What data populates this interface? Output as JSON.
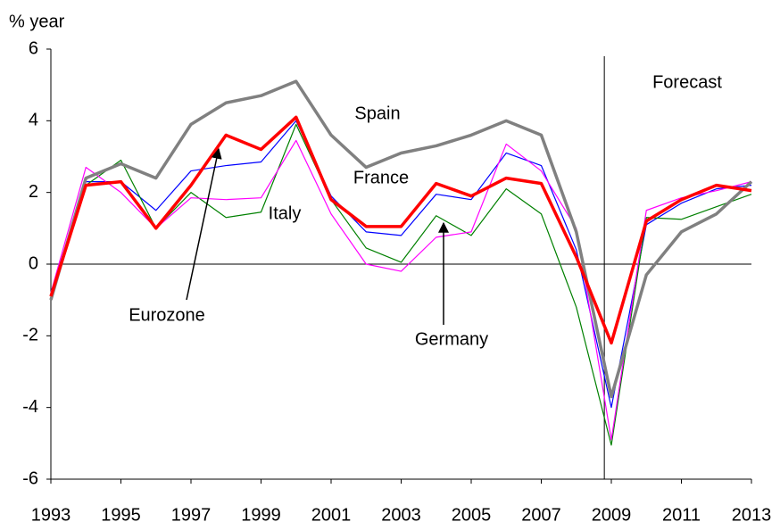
{
  "chart_data": {
    "type": "line",
    "y_label": "% year",
    "x": [
      1993,
      1994,
      1995,
      1996,
      1997,
      1998,
      1999,
      2000,
      2001,
      2002,
      2003,
      2004,
      2005,
      2006,
      2007,
      2008,
      2009,
      2010,
      2011,
      2012,
      2013
    ],
    "xlim": [
      1993,
      2013
    ],
    "xticks": [
      1993,
      1995,
      1997,
      1999,
      2001,
      2003,
      2005,
      2007,
      2009,
      2011,
      2013
    ],
    "ylim": [
      -6,
      6
    ],
    "yticks": [
      -6,
      -4,
      -2,
      0,
      2,
      4,
      6
    ],
    "forecast_start": 2008.8,
    "forecast_label": "Forecast",
    "series": [
      {
        "name": "France",
        "color": "#0000ff",
        "values": [
          -0.8,
          2.3,
          2.3,
          1.5,
          2.6,
          2.75,
          2.85,
          4.0,
          1.9,
          0.9,
          0.8,
          1.95,
          1.8,
          3.1,
          2.75,
          0.4,
          -4.0,
          1.1,
          1.7,
          2.1,
          2.2
        ]
      },
      {
        "name": "Italy",
        "color": "#008000",
        "values": [
          -0.9,
          2.2,
          2.9,
          1.0,
          2.0,
          1.3,
          1.45,
          3.9,
          1.8,
          0.45,
          0.05,
          1.35,
          0.8,
          2.1,
          1.4,
          -1.2,
          -5.05,
          1.3,
          1.25,
          1.6,
          1.95
        ]
      },
      {
        "name": "Germany",
        "color": "#ff00ff",
        "values": [
          -0.8,
          2.7,
          2.0,
          1.0,
          1.85,
          1.8,
          1.85,
          3.45,
          1.4,
          0.0,
          -0.2,
          0.75,
          0.9,
          3.35,
          2.6,
          1.0,
          -4.9,
          1.5,
          1.85,
          2.05,
          2.3
        ]
      },
      {
        "name": "Spain",
        "color": "#808080",
        "values": [
          -1.0,
          2.4,
          2.8,
          2.4,
          3.9,
          4.5,
          4.7,
          5.1,
          3.6,
          2.7,
          3.1,
          3.3,
          3.6,
          4.0,
          3.6,
          0.9,
          -3.7,
          -0.3,
          0.9,
          1.4,
          2.3
        ]
      },
      {
        "name": "Eurozone",
        "color": "#ff0000",
        "values": [
          -0.9,
          2.2,
          2.3,
          1.0,
          2.2,
          3.6,
          3.2,
          4.1,
          1.8,
          1.05,
          1.05,
          2.25,
          1.9,
          2.4,
          2.25,
          0.2,
          -2.2,
          1.2,
          1.8,
          2.2,
          2.05
        ]
      }
    ]
  }
}
